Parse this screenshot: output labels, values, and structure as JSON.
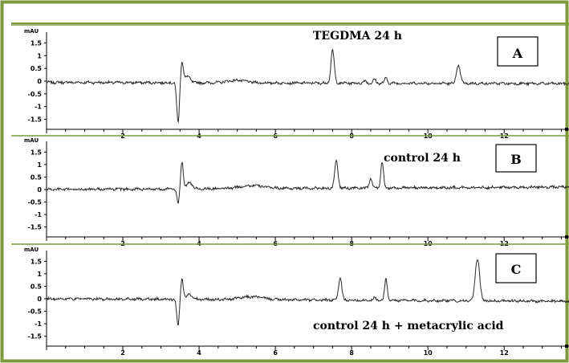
{
  "colors": {
    "frame": "#7a9a3c",
    "trace": "#2a2a2a",
    "axis": "#000000",
    "background": "#ffffff"
  },
  "chart_data": [
    {
      "type": "line",
      "label": "TEGDMA 24 h",
      "panel_letter": "A",
      "ylabel": "mAU",
      "y_ticks": [
        "1.5",
        "1",
        "0.5",
        "0",
        "-0.5",
        "-1",
        "-1.5"
      ],
      "x_ticks": [
        "2",
        "4",
        "6",
        "8",
        "10",
        "12"
      ],
      "xlim": [
        0,
        13.7
      ],
      "ylim": [
        -1.8,
        1.8
      ],
      "baseline_start": -0.05,
      "baseline_end": -0.1,
      "features": [
        {
          "x": 3.45,
          "y": -1.6,
          "width": 0.05
        },
        {
          "x": 3.55,
          "y": 0.85,
          "width": 0.05
        },
        {
          "x": 3.7,
          "y": 0.25,
          "width": 0.1
        },
        {
          "x": 5.0,
          "y": 0.1,
          "width": 0.35
        },
        {
          "x": 7.5,
          "y": 1.3,
          "width": 0.06
        },
        {
          "x": 8.35,
          "y": 0.1,
          "width": 0.05
        },
        {
          "x": 8.6,
          "y": 0.15,
          "width": 0.05
        },
        {
          "x": 8.9,
          "y": 0.2,
          "width": 0.05
        },
        {
          "x": 10.8,
          "y": 0.7,
          "width": 0.07
        }
      ]
    },
    {
      "type": "line",
      "label": "control 24 h",
      "panel_letter": "B",
      "ylabel": "mAU",
      "y_ticks": [
        "1.5",
        "1",
        "0.5",
        "0",
        "-0.5",
        "-1",
        "-1.5"
      ],
      "x_ticks": [
        "2",
        "4",
        "6",
        "8",
        "10",
        "12"
      ],
      "xlim": [
        0,
        13.7
      ],
      "ylim": [
        -1.8,
        1.8
      ],
      "baseline_start": 0.0,
      "baseline_end": 0.1,
      "features": [
        {
          "x": 3.45,
          "y": -0.6,
          "width": 0.05
        },
        {
          "x": 3.55,
          "y": 1.1,
          "width": 0.05
        },
        {
          "x": 3.75,
          "y": 0.25,
          "width": 0.1
        },
        {
          "x": 5.4,
          "y": 0.12,
          "width": 0.45
        },
        {
          "x": 7.6,
          "y": 1.1,
          "width": 0.06
        },
        {
          "x": 8.5,
          "y": 0.4,
          "width": 0.05
        },
        {
          "x": 8.8,
          "y": 1.05,
          "width": 0.05
        }
      ]
    },
    {
      "type": "line",
      "label": "control 24 h + metacrylic acid",
      "panel_letter": "C",
      "ylabel": "mAU",
      "y_ticks": [
        "1.5",
        "1",
        "0.5",
        "0",
        "-0.5",
        "-1",
        "-1.5"
      ],
      "x_ticks": [
        "2",
        "4",
        "6",
        "8",
        "10",
        "12"
      ],
      "xlim": [
        0,
        13.7
      ],
      "ylim": [
        -1.8,
        1.8
      ],
      "baseline_start": 0.0,
      "baseline_end": -0.1,
      "features": [
        {
          "x": 3.45,
          "y": -1.05,
          "width": 0.05
        },
        {
          "x": 3.55,
          "y": 0.85,
          "width": 0.05
        },
        {
          "x": 3.75,
          "y": 0.2,
          "width": 0.1
        },
        {
          "x": 5.4,
          "y": 0.12,
          "width": 0.45
        },
        {
          "x": 7.7,
          "y": 0.9,
          "width": 0.06
        },
        {
          "x": 8.6,
          "y": 0.1,
          "width": 0.05
        },
        {
          "x": 8.9,
          "y": 0.85,
          "width": 0.05
        },
        {
          "x": 11.3,
          "y": 1.7,
          "width": 0.08
        }
      ]
    }
  ]
}
